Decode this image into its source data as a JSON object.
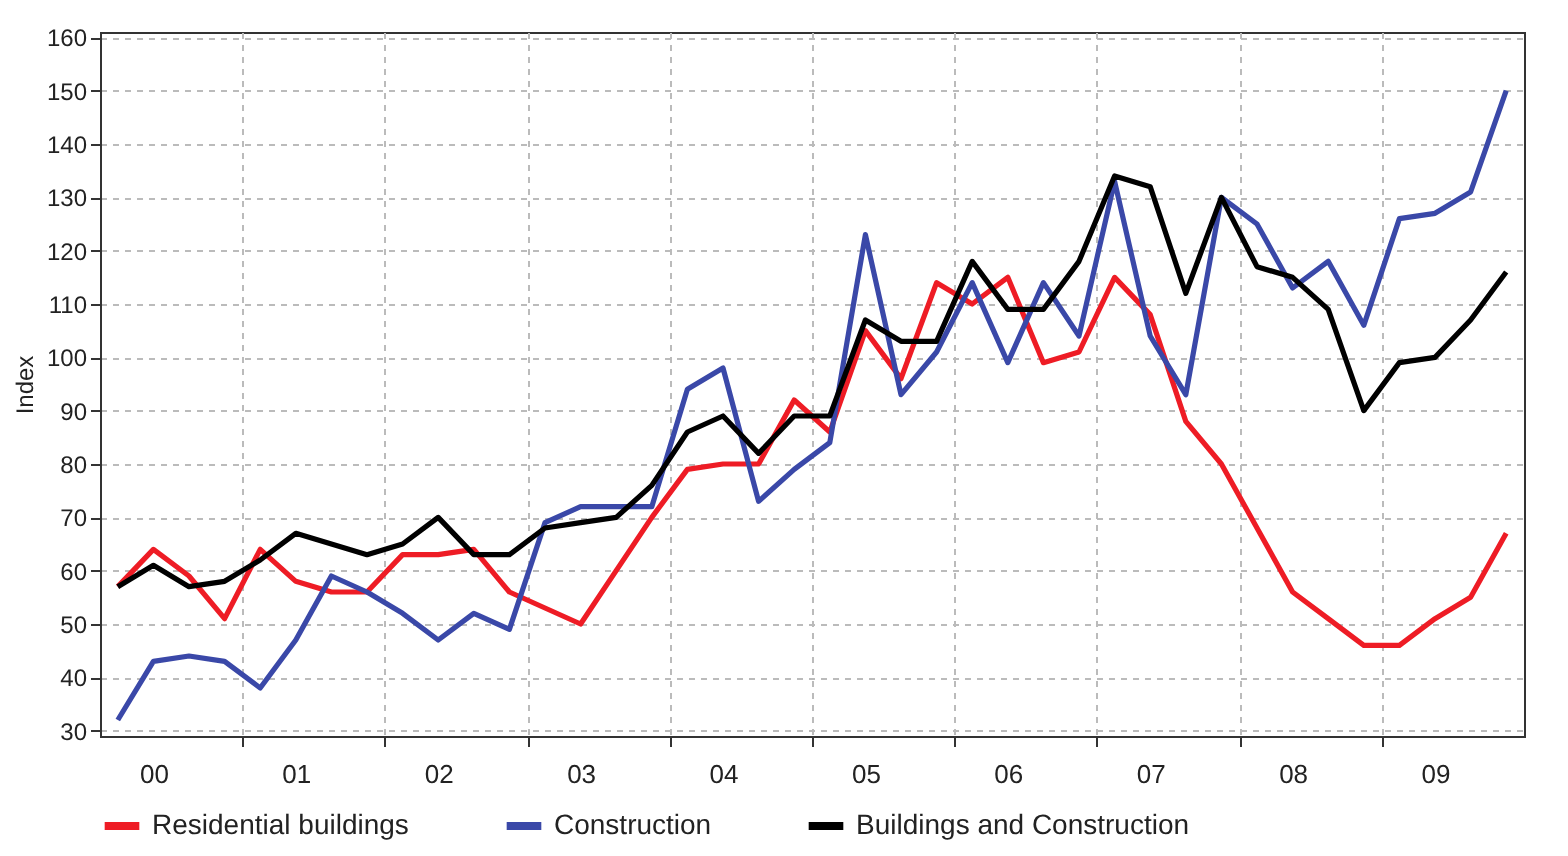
{
  "chart_data": {
    "type": "line",
    "ylabel": "Index",
    "categories": [
      null,
      "00",
      null,
      null,
      null,
      "01",
      null,
      null,
      null,
      "02",
      null,
      null,
      null,
      "03",
      null,
      null,
      null,
      "04",
      null,
      null,
      null,
      "05",
      null,
      null,
      null,
      "06",
      null,
      null,
      null,
      "07",
      null,
      null,
      null,
      "08",
      null,
      null,
      null,
      "09",
      null,
      null
    ],
    "series": [
      {
        "name": "Residential buildings",
        "color": "#ee1c25",
        "values": [
          57,
          64,
          59,
          51,
          64,
          58,
          56,
          56,
          63,
          63,
          64,
          56,
          53,
          50,
          60,
          70,
          79,
          80,
          80,
          92,
          86,
          105,
          96,
          114,
          110,
          115,
          99,
          101,
          115,
          108,
          88,
          80,
          68,
          56,
          51,
          46,
          46,
          51,
          55,
          67
        ]
      },
      {
        "name": "Construction",
        "color": "#3a48a8",
        "values": [
          32,
          43,
          44,
          43,
          38,
          47,
          59,
          56,
          52,
          47,
          52,
          49,
          69,
          72,
          72,
          72,
          94,
          98,
          73,
          79,
          84,
          123,
          93,
          101,
          114,
          99,
          114,
          104,
          133,
          104,
          93,
          130,
          125,
          113,
          118,
          106,
          126,
          127,
          131,
          150
        ]
      },
      {
        "name": "Buildings and Construction",
        "color": "#000000",
        "values": [
          57,
          61,
          57,
          58,
          62,
          67,
          65,
          63,
          65,
          70,
          63,
          63,
          68,
          69,
          70,
          76,
          86,
          89,
          82,
          89,
          89,
          107,
          103,
          103,
          118,
          109,
          109,
          118,
          134,
          132,
          112,
          130,
          117,
          115,
          109,
          90,
          99,
          100,
          107,
          116
        ]
      }
    ],
    "ylim": [
      29,
      161
    ],
    "yticks": [
      30,
      40,
      50,
      60,
      70,
      80,
      90,
      100,
      110,
      120,
      130,
      140,
      150,
      160
    ],
    "grid": true,
    "legend": "bottom"
  }
}
